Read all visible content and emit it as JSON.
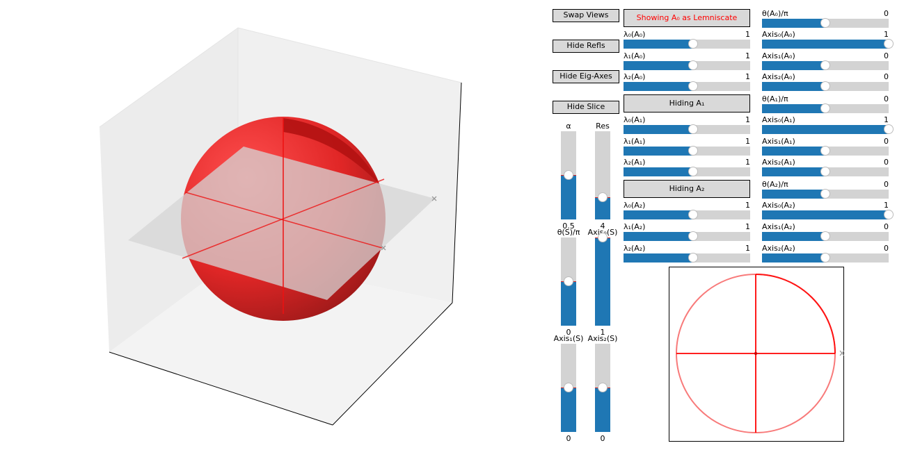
{
  "buttons": {
    "swap_views": "Swap Views",
    "hide_refls": "Hide Refls",
    "hide_eig_axes": "Hide Eig-Axes",
    "hide_slice": "Hide Slice"
  },
  "toggles": {
    "a0": "Showing A₀ as Lemniscate",
    "a1": "Hiding A₁",
    "a2": "Hiding A₂"
  },
  "colors": {
    "accent": "#1f77b4",
    "track": "#d3d3d3",
    "marker": "#d62728",
    "ellipsoid": "#ff0000",
    "toggle_text_active": "#ff0000"
  },
  "eigen_sliders": [
    {
      "label": "λ₀(A₀)",
      "value": "1",
      "level": 0.55
    },
    {
      "label": "λ₁(A₀)",
      "value": "1",
      "level": 0.55
    },
    {
      "label": "λ₂(A₀)",
      "value": "1",
      "level": 0.55
    },
    {
      "label": "λ₀(A₁)",
      "value": "1",
      "level": 0.55
    },
    {
      "label": "λ₁(A₁)",
      "value": "1",
      "level": 0.55
    },
    {
      "label": "λ₂(A₁)",
      "value": "1",
      "level": 0.55
    },
    {
      "label": "λ₀(A₂)",
      "value": "1",
      "level": 0.55
    },
    {
      "label": "λ₁(A₂)",
      "value": "1",
      "level": 0.55
    },
    {
      "label": "λ₂(A₂)",
      "value": "1",
      "level": 0.55
    }
  ],
  "axis_sliders": [
    {
      "label": "θ(A₀)/π",
      "value": "0",
      "level": 0.5
    },
    {
      "label": "Axis₀(A₀)",
      "value": "1",
      "level": 1.0
    },
    {
      "label": "Axis₁(A₀)",
      "value": "0",
      "level": 0.5
    },
    {
      "label": "Axis₂(A₀)",
      "value": "0",
      "level": 0.5
    },
    {
      "label": "θ(A₁)/π",
      "value": "0",
      "level": 0.5
    },
    {
      "label": "Axis₀(A₁)",
      "value": "1",
      "level": 1.0
    },
    {
      "label": "Axis₁(A₁)",
      "value": "0",
      "level": 0.5
    },
    {
      "label": "Axis₂(A₁)",
      "value": "0",
      "level": 0.5
    },
    {
      "label": "θ(A₂)/π",
      "value": "0",
      "level": 0.5
    },
    {
      "label": "Axis₀(A₂)",
      "value": "1",
      "level": 1.0
    },
    {
      "label": "Axis₁(A₂)",
      "value": "0",
      "level": 0.5
    },
    {
      "label": "Axis₂(A₂)",
      "value": "0",
      "level": 0.5
    }
  ],
  "vertical_sliders": [
    {
      "label": "α",
      "value": "0.5",
      "level": 0.5
    },
    {
      "label": "Res",
      "value": "4",
      "level": 0.25
    },
    {
      "label": "θ(S)/π",
      "value": "0",
      "level": 0.5
    },
    {
      "label": "Axis₀(S)",
      "value": "1",
      "level": 1.0
    },
    {
      "label": "Axis₁(S)",
      "value": "0",
      "level": 0.5
    },
    {
      "label": "Axis₂(S)",
      "value": "0",
      "level": 0.5
    }
  ]
}
